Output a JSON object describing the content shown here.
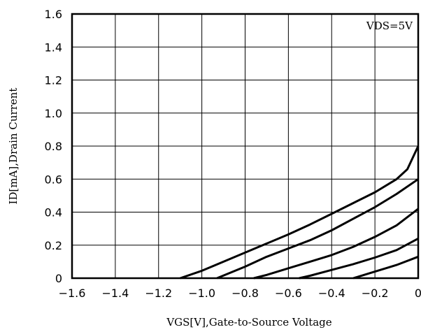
{
  "chart_data": {
    "type": "line",
    "xlabel": "VGS[V],Gate-to-Source Voltage",
    "ylabel": "ID[mA],Drain Current",
    "annotation": "VDS=5V",
    "xlim": [
      -1.6,
      0
    ],
    "ylim": [
      0,
      1.6
    ],
    "x_ticks": [
      "-1.6",
      "-1.4",
      "-1.2",
      "-1.0",
      "-0.8",
      "-0.6",
      "-0.4",
      "-0.2",
      "0"
    ],
    "y_ticks": [
      "0",
      "0.2",
      "0.4",
      "0.6",
      "0.8",
      "1.0",
      "1.2",
      "1.4",
      "1.6"
    ],
    "grid": true,
    "series": [
      {
        "x": [
          -1.1,
          -1.0,
          -0.9,
          -0.8,
          -0.7,
          -0.6,
          -0.5,
          -0.4,
          -0.3,
          -0.2,
          -0.1,
          -0.05,
          0
        ],
        "y": [
          0,
          0.045,
          0.1,
          0.155,
          0.21,
          0.265,
          0.325,
          0.39,
          0.455,
          0.52,
          0.6,
          0.66,
          0.8
        ]
      },
      {
        "x": [
          -0.93,
          -0.8,
          -0.7,
          -0.6,
          -0.5,
          -0.4,
          -0.3,
          -0.2,
          -0.1,
          0
        ],
        "y": [
          0,
          0.07,
          0.13,
          0.18,
          0.23,
          0.29,
          0.36,
          0.43,
          0.51,
          0.6
        ]
      },
      {
        "x": [
          -0.76,
          -0.7,
          -0.6,
          -0.5,
          -0.4,
          -0.3,
          -0.2,
          -0.1,
          0
        ],
        "y": [
          0,
          0.02,
          0.06,
          0.1,
          0.14,
          0.19,
          0.25,
          0.32,
          0.42
        ]
      },
      {
        "x": [
          -0.55,
          -0.5,
          -0.4,
          -0.3,
          -0.2,
          -0.1,
          0
        ],
        "y": [
          0,
          0.015,
          0.05,
          0.085,
          0.125,
          0.17,
          0.24
        ]
      },
      {
        "x": [
          -0.3,
          -0.2,
          -0.1,
          0
        ],
        "y": [
          0,
          0.04,
          0.08,
          0.13
        ]
      }
    ]
  }
}
